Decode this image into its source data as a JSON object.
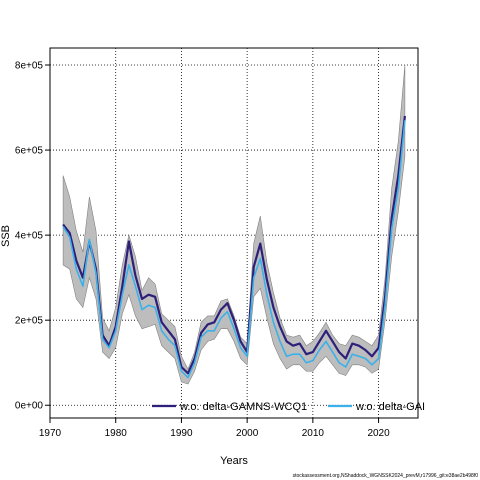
{
  "chart_data": {
    "type": "line",
    "xlabel": "Years",
    "ylabel": "SSB",
    "xlim": [
      1970,
      2026
    ],
    "ylim": [
      -30000,
      840000
    ],
    "x_ticks": [
      1970,
      1980,
      1990,
      2000,
      2010,
      2020
    ],
    "y_ticks": [
      0,
      200000,
      400000,
      600000,
      800000
    ],
    "y_tick_labels": [
      "0e+00",
      "2e+05",
      "4e+05",
      "6e+05",
      "8e+05"
    ],
    "grid": true,
    "grid_style": "dotted",
    "legend_position": "bottom",
    "band": {
      "years": [
        1972,
        1973,
        1974,
        1975,
        1976,
        1977,
        1978,
        1979,
        1980,
        1981,
        1982,
        1983,
        1984,
        1985,
        1986,
        1987,
        1988,
        1989,
        1990,
        1991,
        1992,
        1993,
        1994,
        1995,
        1996,
        1997,
        1998,
        1999,
        2000,
        2001,
        2002,
        2003,
        2004,
        2005,
        2006,
        2007,
        2008,
        2009,
        2010,
        2011,
        2012,
        2013,
        2014,
        2015,
        2016,
        2017,
        2018,
        2019,
        2020,
        2021,
        2022,
        2023,
        2024
      ],
      "upper": [
        540000,
        490000,
        410000,
        360000,
        490000,
        410000,
        205000,
        175000,
        230000,
        330000,
        400000,
        350000,
        270000,
        300000,
        285000,
        215000,
        200000,
        185000,
        115000,
        85000,
        125000,
        195000,
        210000,
        210000,
        245000,
        250000,
        210000,
        160000,
        145000,
        380000,
        445000,
        335000,
        265000,
        205000,
        165000,
        160000,
        165000,
        140000,
        150000,
        170000,
        195000,
        165000,
        145000,
        140000,
        165000,
        160000,
        150000,
        140000,
        165000,
        300000,
        510000,
        620000,
        800000
      ],
      "lower": [
        330000,
        320000,
        250000,
        230000,
        300000,
        250000,
        125000,
        110000,
        135000,
        215000,
        260000,
        210000,
        180000,
        185000,
        190000,
        140000,
        125000,
        110000,
        55000,
        50000,
        80000,
        130000,
        150000,
        155000,
        180000,
        180000,
        150000,
        110000,
        95000,
        255000,
        275000,
        205000,
        145000,
        110000,
        85000,
        95000,
        95000,
        80000,
        80000,
        100000,
        115000,
        95000,
        75000,
        70000,
        95000,
        95000,
        90000,
        75000,
        85000,
        200000,
        350000,
        455000,
        585000
      ]
    },
    "series": [
      {
        "name": "w.o. delta-GAMNS-WCQ1",
        "color": "#2e1f7a",
        "x": [
          1972,
          1973,
          1974,
          1975,
          1976,
          1977,
          1978,
          1979,
          1980,
          1981,
          1982,
          1983,
          1984,
          1985,
          1986,
          1987,
          1988,
          1989,
          1990,
          1991,
          1992,
          1993,
          1994,
          1995,
          1996,
          1997,
          1998,
          1999,
          2000,
          2001,
          2002,
          2003,
          2004,
          2005,
          2006,
          2007,
          2008,
          2009,
          2010,
          2011,
          2012,
          2013,
          2014,
          2015,
          2016,
          2017,
          2018,
          2019,
          2020,
          2021,
          2022,
          2023,
          2024
        ],
        "y": [
          425000,
          405000,
          340000,
          300000,
          385000,
          320000,
          165000,
          140000,
          185000,
          280000,
          385000,
          305000,
          250000,
          260000,
          255000,
          195000,
          175000,
          155000,
          90000,
          75000,
          110000,
          170000,
          190000,
          195000,
          225000,
          240000,
          200000,
          150000,
          125000,
          325000,
          380000,
          295000,
          230000,
          185000,
          150000,
          140000,
          145000,
          120000,
          125000,
          150000,
          175000,
          150000,
          125000,
          110000,
          145000,
          140000,
          130000,
          115000,
          135000,
          255000,
          440000,
          540000,
          680000
        ]
      },
      {
        "name": "w.o. delta-GAI",
        "color": "#3cb0e8",
        "x": [
          1972,
          1973,
          1974,
          1975,
          1976,
          1977,
          1978,
          1979,
          1980,
          1981,
          1982,
          1983,
          1984,
          1985,
          1986,
          1987,
          1988,
          1989,
          1990,
          1991,
          1992,
          1993,
          1994,
          1995,
          1996,
          1997,
          1998,
          1999,
          2000,
          2001,
          2002,
          2003,
          2004,
          2005,
          2006,
          2007,
          2008,
          2009,
          2010,
          2011,
          2012,
          2013,
          2014,
          2015,
          2016,
          2017,
          2018,
          2019,
          2020,
          2021,
          2022,
          2023,
          2024
        ],
        "y": [
          420000,
          395000,
          320000,
          280000,
          390000,
          310000,
          155000,
          135000,
          175000,
          260000,
          330000,
          280000,
          225000,
          235000,
          230000,
          175000,
          155000,
          140000,
          80000,
          65000,
          100000,
          160000,
          175000,
          175000,
          205000,
          220000,
          180000,
          135000,
          115000,
          300000,
          345000,
          260000,
          195000,
          150000,
          115000,
          120000,
          120000,
          100000,
          105000,
          130000,
          150000,
          125000,
          100000,
          90000,
          120000,
          115000,
          110000,
          95000,
          110000,
          235000,
          415000,
          510000,
          670000
        ]
      }
    ],
    "footnote": "stockassessment.org,NShaddock_WGNSSK2024_prevM,r17996_git:e38ae2b498f0"
  }
}
